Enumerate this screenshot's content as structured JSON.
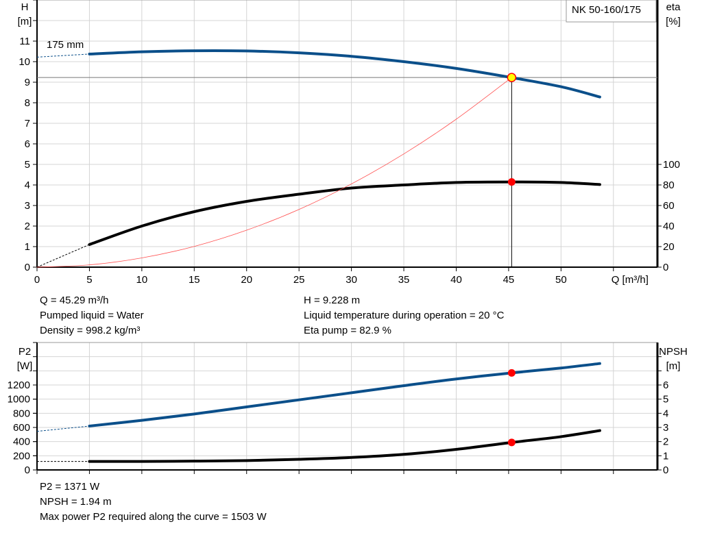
{
  "chart_data": [
    {
      "type": "line",
      "label_pump": "NK 50-160/175",
      "impeller_label": "175 mm",
      "x_axis": {
        "label": "Q [m³/h]",
        "range": [
          0,
          59.2
        ],
        "ticks": [
          0,
          5,
          10,
          15,
          20,
          25,
          30,
          35,
          40,
          45,
          50
        ]
      },
      "y_left": {
        "label": "H",
        "unit": "[m]",
        "range": [
          0,
          13
        ],
        "ticks": [
          0,
          1,
          2,
          3,
          4,
          5,
          6,
          7,
          8,
          9,
          10,
          11
        ]
      },
      "y_right": {
        "label": "eta",
        "unit": "[%]",
        "range": [
          0,
          260
        ],
        "ticks": [
          0,
          20,
          40,
          60,
          80,
          100
        ]
      },
      "grid": true,
      "series": [
        {
          "key": "H",
          "axis": "left",
          "color": "#0b4f8a",
          "x": [
            5,
            10,
            15,
            20,
            25,
            30,
            35,
            40,
            45,
            50,
            53.7
          ],
          "y": [
            10.37,
            10.48,
            10.53,
            10.52,
            10.43,
            10.26,
            10.0,
            9.67,
            9.25,
            8.78,
            8.28
          ],
          "extrapolated_from": [
            0,
            10.22
          ]
        },
        {
          "key": "eta",
          "axis": "right",
          "color": "#000000",
          "x": [
            5,
            10,
            15,
            20,
            25,
            30,
            35,
            40,
            45.29,
            50,
            53.7
          ],
          "y": [
            22,
            40,
            54,
            64,
            71,
            77,
            80,
            82.4,
            82.9,
            82.4,
            80.4
          ],
          "extrapolated_from": [
            0,
            0
          ]
        },
        {
          "key": "system",
          "axis": "left",
          "color": "#ff5050",
          "x": [
            0,
            5,
            10,
            15,
            20,
            25,
            30,
            35,
            40,
            45.29
          ],
          "y": [
            0,
            0.11,
            0.45,
            1.01,
            1.8,
            2.81,
            4.05,
            5.51,
            7.2,
            9.228
          ]
        }
      ],
      "operating_point": {
        "Q": 45.29,
        "H": 9.228,
        "eta": 82.9
      }
    },
    {
      "type": "line",
      "x_axis": {
        "range": [
          0,
          59.2
        ],
        "ticks": [
          0,
          5,
          10,
          15,
          20,
          25,
          30,
          35,
          40,
          45,
          50,
          55
        ]
      },
      "y_left": {
        "label": "P2",
        "unit": "[W]",
        "range": [
          0,
          1800
        ],
        "ticks": [
          0,
          200,
          400,
          600,
          800,
          1000,
          1200
        ]
      },
      "y_right": {
        "label": "NPSH",
        "unit": "[m]",
        "range": [
          0,
          9
        ],
        "ticks": [
          0,
          1,
          2,
          3,
          4,
          5,
          6
        ]
      },
      "grid": true,
      "series": [
        {
          "key": "P2",
          "axis": "left",
          "color": "#0b4f8a",
          "x": [
            5,
            10,
            15,
            20,
            25,
            30,
            35,
            40,
            45.29,
            50,
            53.7
          ],
          "y": [
            620,
            700,
            790,
            890,
            990,
            1090,
            1190,
            1285,
            1371,
            1440,
            1503
          ],
          "extrapolated_from": [
            0,
            545
          ]
        },
        {
          "key": "NPSH",
          "axis": "right",
          "color": "#000000",
          "x": [
            5,
            10,
            15,
            20,
            25,
            30,
            35,
            40,
            45.29,
            50,
            53.7
          ],
          "y": [
            0.6,
            0.6,
            0.62,
            0.66,
            0.75,
            0.88,
            1.1,
            1.45,
            1.94,
            2.35,
            2.78
          ],
          "extrapolated_from": [
            0,
            0.6
          ]
        }
      ],
      "operating_point": {
        "Q": 45.29,
        "P2": 1371,
        "NPSH": 1.94
      }
    }
  ],
  "info_top": {
    "q": "Q = 45.29 m³/h",
    "liquid": "Pumped liquid = Water",
    "density": "Density = 998.2 kg/m³",
    "h": "H = 9.228 m",
    "temp": "Liquid temperature during operation = 20 °C",
    "eta": "Eta pump = 82.9 %"
  },
  "info_bottom": {
    "p2": "P2 = 1371 W",
    "npsh": "NPSH = 1.94 m",
    "max": "Max power P2 required along the curve = 1503 W"
  }
}
